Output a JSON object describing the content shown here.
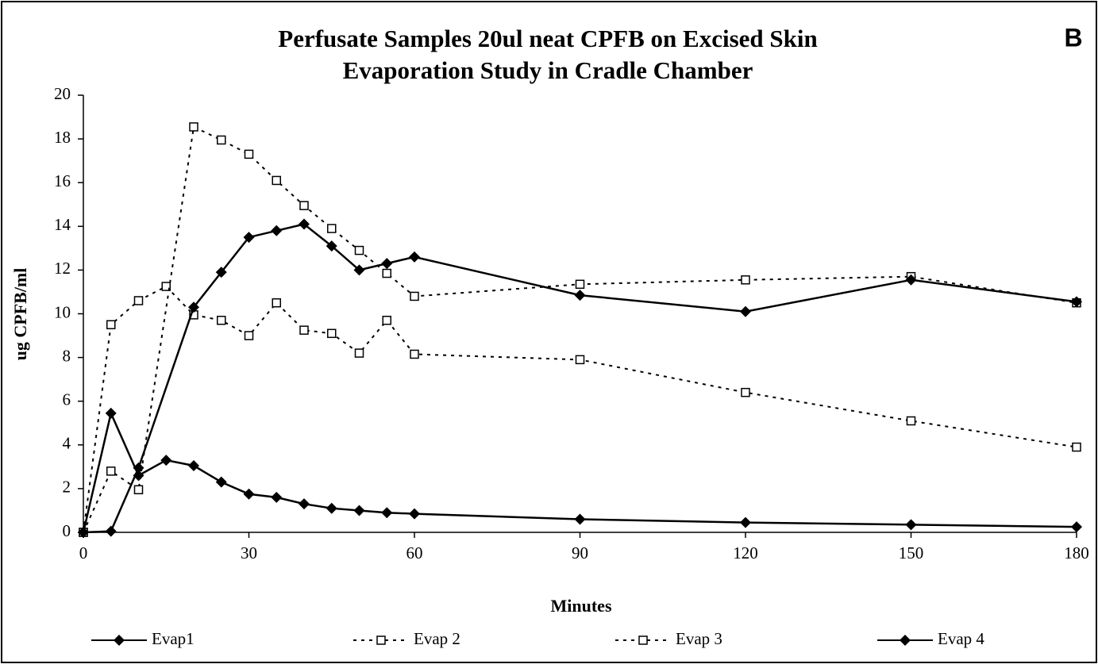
{
  "chart_data": {
    "type": "line",
    "title": "Perfusate Samples 20ul neat CPFB on Excised Skin",
    "subtitle": "Evaporation Study in Cradle Chamber",
    "annotation": "B",
    "xlabel": "Minutes",
    "ylabel": "ug CPFB/ml",
    "xlim": [
      0,
      180
    ],
    "xticks": [
      0,
      30,
      60,
      90,
      120,
      150,
      180
    ],
    "ylim": [
      0,
      20
    ],
    "yticks": [
      0,
      2,
      4,
      6,
      8,
      10,
      12,
      14,
      16,
      18,
      20
    ],
    "series": [
      {
        "name": "Evap1",
        "color": "#000000",
        "dash": false,
        "marker": "diamond",
        "x": [
          0,
          5,
          10,
          15,
          20,
          25,
          30,
          35,
          40,
          45,
          50,
          55,
          60,
          90,
          120,
          150,
          180
        ],
        "values": [
          0,
          5.45,
          2.6,
          3.3,
          3.05,
          2.3,
          1.75,
          1.6,
          1.3,
          1.1,
          1.0,
          0.9,
          0.85,
          0.6,
          0.45,
          0.35,
          0.25
        ]
      },
      {
        "name": "Evap 2",
        "color": "#000000",
        "dash": true,
        "marker": "square",
        "x": [
          0,
          5,
          10,
          15,
          20,
          25,
          30,
          35,
          40,
          45,
          50,
          55,
          60,
          90,
          120,
          150,
          180
        ],
        "values": [
          0,
          9.5,
          10.6,
          11.25,
          9.95,
          9.7,
          9.0,
          10.5,
          9.25,
          9.1,
          8.2,
          9.7,
          8.15,
          7.9,
          6.4,
          5.1,
          3.9
        ]
      },
      {
        "name": "Evap 3",
        "color": "#000000",
        "dash": true,
        "marker": "square",
        "x": [
          0,
          5,
          10,
          20,
          25,
          30,
          35,
          40,
          45,
          50,
          55,
          60,
          90,
          120,
          150,
          180
        ],
        "values": [
          0,
          2.8,
          1.95,
          18.55,
          17.95,
          17.3,
          16.1,
          14.95,
          13.9,
          12.9,
          11.85,
          10.8,
          11.35,
          11.55,
          11.7,
          10.5
        ]
      },
      {
        "name": "Evap 4",
        "color": "#000000",
        "dash": false,
        "marker": "diamond",
        "x": [
          0,
          5,
          10,
          20,
          25,
          30,
          35,
          40,
          45,
          50,
          55,
          60,
          90,
          120,
          150,
          180
        ],
        "values": [
          0,
          0.05,
          2.95,
          10.3,
          11.9,
          13.5,
          13.8,
          14.1,
          13.1,
          12.0,
          12.3,
          12.6,
          10.85,
          10.1,
          11.55,
          10.55
        ]
      }
    ]
  }
}
